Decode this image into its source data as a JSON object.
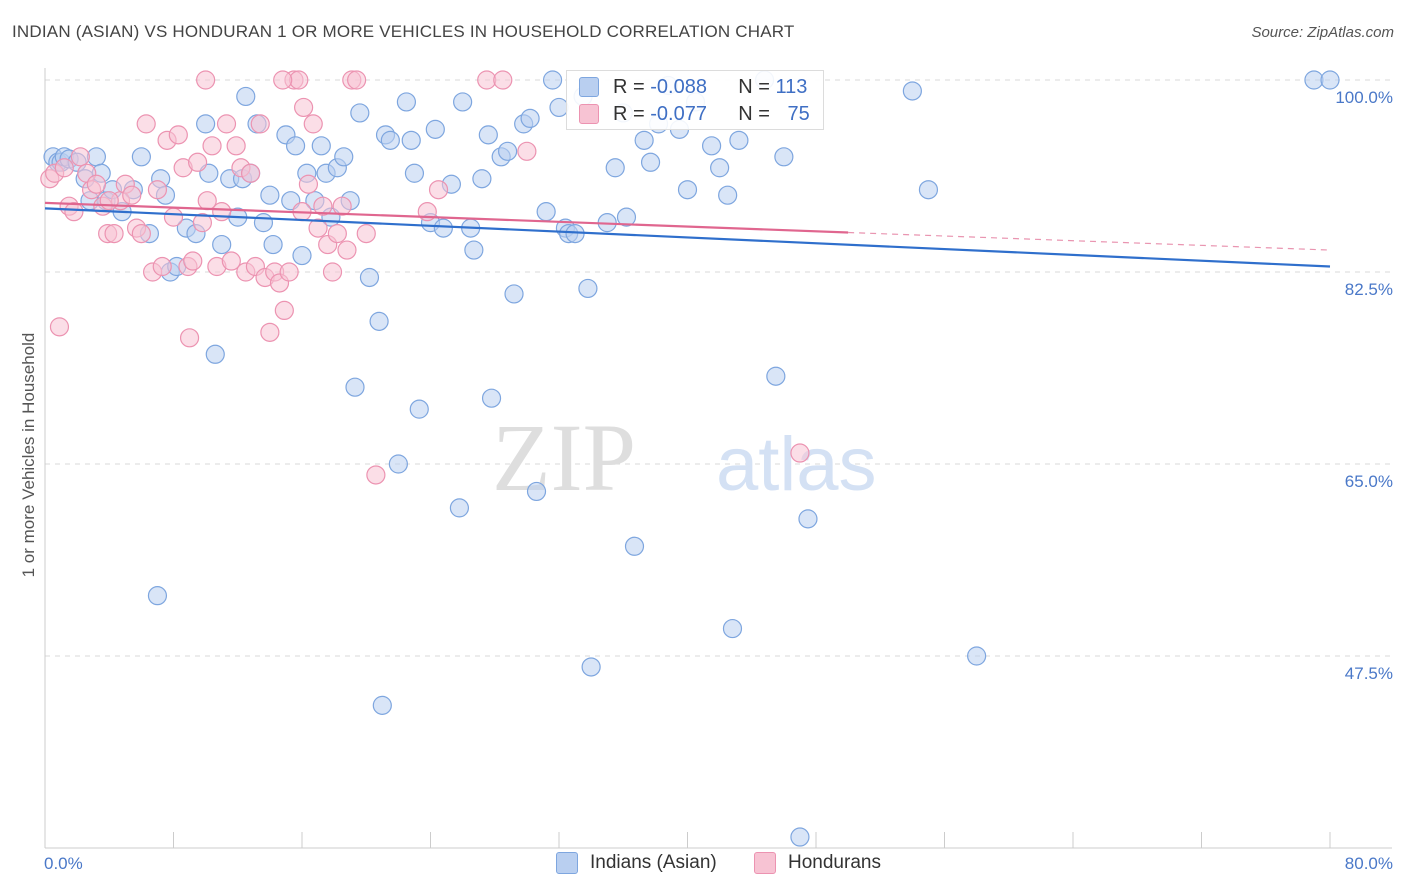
{
  "title": "INDIAN (ASIAN) VS HONDURAN 1 OR MORE VEHICLES IN HOUSEHOLD CORRELATION CHART",
  "source": "Source: ZipAtlas.com",
  "watermark": {
    "zip": "ZIP",
    "atlas": "atlas"
  },
  "legend": {
    "indians": {
      "r_label": "R =",
      "r_value": "-0.088",
      "n_label": "N =",
      "n_value": "113"
    },
    "hondurans": {
      "r_label": "R =",
      "r_value": "-0.077",
      "n_label": "N =",
      "n_value": "75"
    }
  },
  "colors": {
    "indians_fill": "#b9cff0",
    "indians_stroke": "#7ea6df",
    "indians_line": "#2f6fcc",
    "hondurans_fill": "#f7c3d3",
    "hondurans_stroke": "#ec93b1",
    "hondurans_line": "#e0668f"
  },
  "chart_data": {
    "type": "scatter",
    "title": "INDIAN (ASIAN) VS HONDURAN 1 OR MORE VEHICLES IN HOUSEHOLD CORRELATION CHART",
    "xlabel": "",
    "ylabel": "1 or more Vehicles in Household",
    "xlim": [
      0,
      80
    ],
    "ylim": [
      30,
      100
    ],
    "x_tick_labels": [
      "0.0%",
      "80.0%"
    ],
    "y_ticks": [
      {
        "value": 100,
        "label": "100.0%"
      },
      {
        "value": 82.5,
        "label": "82.5%"
      },
      {
        "value": 65,
        "label": "65.0%"
      },
      {
        "value": 47.5,
        "label": "47.5%"
      }
    ],
    "grid": true,
    "legend_position": "top-center",
    "series": [
      {
        "name": "Indians (Asian)",
        "trend": {
          "x": [
            0,
            80
          ],
          "y": [
            88.3,
            83.0
          ]
        },
        "points": [
          [
            0.5,
            93.0
          ],
          [
            0.8,
            92.5
          ],
          [
            1.0,
            92.5
          ],
          [
            1.2,
            93.0
          ],
          [
            1.5,
            92.8
          ],
          [
            2.0,
            92.5
          ],
          [
            2.5,
            91.0
          ],
          [
            2.8,
            89.0
          ],
          [
            3.2,
            93.0
          ],
          [
            3.5,
            91.5
          ],
          [
            3.8,
            89.0
          ],
          [
            4.2,
            90.0
          ],
          [
            4.8,
            88.0
          ],
          [
            5.5,
            90.0
          ],
          [
            6.0,
            93.0
          ],
          [
            6.5,
            86.0
          ],
          [
            7.2,
            91.0
          ],
          [
            7.5,
            89.5
          ],
          [
            7.8,
            82.5
          ],
          [
            8.2,
            83.0
          ],
          [
            8.8,
            86.5
          ],
          [
            9.4,
            86.0
          ],
          [
            10.0,
            96.0
          ],
          [
            10.2,
            91.5
          ],
          [
            10.6,
            75.0
          ],
          [
            11.0,
            85.0
          ],
          [
            11.5,
            91.0
          ],
          [
            12.0,
            87.5
          ],
          [
            12.3,
            91.0
          ],
          [
            12.8,
            91.5
          ],
          [
            13.2,
            96.0
          ],
          [
            13.6,
            87.0
          ],
          [
            14.0,
            89.5
          ],
          [
            14.2,
            85.0
          ],
          [
            15.0,
            95.0
          ],
          [
            15.3,
            89.0
          ],
          [
            15.6,
            94.0
          ],
          [
            16.0,
            84.0
          ],
          [
            16.3,
            91.5
          ],
          [
            16.8,
            89.0
          ],
          [
            17.2,
            94.0
          ],
          [
            17.5,
            91.5
          ],
          [
            17.8,
            87.5
          ],
          [
            18.2,
            92.0
          ],
          [
            18.6,
            93.0
          ],
          [
            19.0,
            89.0
          ],
          [
            19.3,
            72.0
          ],
          [
            19.6,
            97.0
          ],
          [
            20.2,
            82.0
          ],
          [
            20.8,
            78.0
          ],
          [
            21.2,
            95.0
          ],
          [
            21.5,
            94.5
          ],
          [
            22.0,
            65.0
          ],
          [
            22.5,
            98.0
          ],
          [
            22.8,
            94.5
          ],
          [
            23.0,
            91.5
          ],
          [
            23.3,
            70.0
          ],
          [
            24.0,
            87.0
          ],
          [
            24.3,
            95.5
          ],
          [
            24.8,
            86.5
          ],
          [
            25.3,
            90.5
          ],
          [
            25.8,
            61.0
          ],
          [
            26.5,
            86.5
          ],
          [
            26.7,
            84.5
          ],
          [
            27.2,
            91.0
          ],
          [
            27.6,
            95.0
          ],
          [
            27.8,
            71.0
          ],
          [
            28.4,
            93.0
          ],
          [
            28.8,
            93.5
          ],
          [
            29.2,
            80.5
          ],
          [
            29.8,
            96.0
          ],
          [
            30.2,
            96.5
          ],
          [
            30.6,
            62.5
          ],
          [
            31.2,
            88.0
          ],
          [
            31.6,
            100.0
          ],
          [
            32.0,
            97.5
          ],
          [
            32.4,
            86.5
          ],
          [
            32.6,
            86.0
          ],
          [
            33.5,
            98.5
          ],
          [
            33.8,
            81.0
          ],
          [
            34.0,
            46.5
          ],
          [
            35.0,
            87.0
          ],
          [
            35.5,
            92.0
          ],
          [
            36.2,
            87.5
          ],
          [
            36.7,
            57.5
          ],
          [
            37.3,
            94.5
          ],
          [
            37.7,
            92.5
          ],
          [
            38.2,
            96.0
          ],
          [
            38.8,
            99.5
          ],
          [
            39.5,
            95.5
          ],
          [
            40.0,
            90.0
          ],
          [
            40.5,
            98.0
          ],
          [
            41.5,
            94.0
          ],
          [
            42.0,
            92.0
          ],
          [
            42.5,
            89.5
          ],
          [
            42.8,
            50.0
          ],
          [
            43.2,
            94.5
          ],
          [
            44.8,
            100.0
          ],
          [
            45.5,
            73.0
          ],
          [
            46.0,
            93.0
          ],
          [
            47.0,
            31.0
          ],
          [
            47.5,
            60.0
          ],
          [
            54.0,
            99.0
          ],
          [
            55.0,
            90.0
          ],
          [
            58.0,
            47.5
          ],
          [
            79.0,
            100.0
          ],
          [
            80.0,
            100.0
          ],
          [
            21.0,
            43.0
          ],
          [
            7.0,
            53.0
          ],
          [
            12.5,
            98.5
          ],
          [
            26.0,
            98.0
          ],
          [
            33.0,
            86.0
          ],
          [
            36.0,
            97.0
          ]
        ]
      },
      {
        "name": "Hondurans",
        "trend": {
          "x": [
            0,
            50
          ],
          "y": [
            88.8,
            86.1
          ]
        },
        "trend_extension": {
          "x": [
            50,
            80
          ],
          "y": [
            86.1,
            84.5
          ]
        },
        "points": [
          [
            0.3,
            91.0
          ],
          [
            0.6,
            91.5
          ],
          [
            0.9,
            77.5
          ],
          [
            1.2,
            92.0
          ],
          [
            1.5,
            88.5
          ],
          [
            1.8,
            88.0
          ],
          [
            2.2,
            93.0
          ],
          [
            2.6,
            91.5
          ],
          [
            2.9,
            90.0
          ],
          [
            3.2,
            90.5
          ],
          [
            3.6,
            88.5
          ],
          [
            3.9,
            86.0
          ],
          [
            4.3,
            86.0
          ],
          [
            4.7,
            89.0
          ],
          [
            5.0,
            90.5
          ],
          [
            5.4,
            89.5
          ],
          [
            5.7,
            86.5
          ],
          [
            6.0,
            86.0
          ],
          [
            6.3,
            96.0
          ],
          [
            6.7,
            82.5
          ],
          [
            7.0,
            90.0
          ],
          [
            7.3,
            83.0
          ],
          [
            7.6,
            94.5
          ],
          [
            8.0,
            87.5
          ],
          [
            8.3,
            95.0
          ],
          [
            8.6,
            92.0
          ],
          [
            8.9,
            83.0
          ],
          [
            9.2,
            83.5
          ],
          [
            9.5,
            92.5
          ],
          [
            9.8,
            87.0
          ],
          [
            10.1,
            89.0
          ],
          [
            10.4,
            94.0
          ],
          [
            10.7,
            83.0
          ],
          [
            11.0,
            88.0
          ],
          [
            11.3,
            96.0
          ],
          [
            11.6,
            83.5
          ],
          [
            11.9,
            94.0
          ],
          [
            12.2,
            92.0
          ],
          [
            12.5,
            82.5
          ],
          [
            12.8,
            91.5
          ],
          [
            13.1,
            83.0
          ],
          [
            13.4,
            96.0
          ],
          [
            13.7,
            82.0
          ],
          [
            14.0,
            77.0
          ],
          [
            14.3,
            82.5
          ],
          [
            14.6,
            81.5
          ],
          [
            14.9,
            79.0
          ],
          [
            15.2,
            82.5
          ],
          [
            15.5,
            100.0
          ],
          [
            15.8,
            100.0
          ],
          [
            16.1,
            97.5
          ],
          [
            16.4,
            90.5
          ],
          [
            16.7,
            96.0
          ],
          [
            17.0,
            86.5
          ],
          [
            17.3,
            88.5
          ],
          [
            17.6,
            85.0
          ],
          [
            17.9,
            82.5
          ],
          [
            18.2,
            86.0
          ],
          [
            18.5,
            88.5
          ],
          [
            18.8,
            84.5
          ],
          [
            19.1,
            100.0
          ],
          [
            19.4,
            100.0
          ],
          [
            20.0,
            86.0
          ],
          [
            20.6,
            64.0
          ],
          [
            23.8,
            88.0
          ],
          [
            24.5,
            90.0
          ],
          [
            27.5,
            100.0
          ],
          [
            28.5,
            100.0
          ],
          [
            30.0,
            93.5
          ],
          [
            47.0,
            66.0
          ],
          [
            10.0,
            100.0
          ],
          [
            14.8,
            100.0
          ],
          [
            9.0,
            76.5
          ],
          [
            4.0,
            89.0
          ],
          [
            16.0,
            88.0
          ]
        ]
      }
    ]
  },
  "bottom_legend": {
    "indians": "Indians (Asian)",
    "hondurans": "Hondurans"
  }
}
